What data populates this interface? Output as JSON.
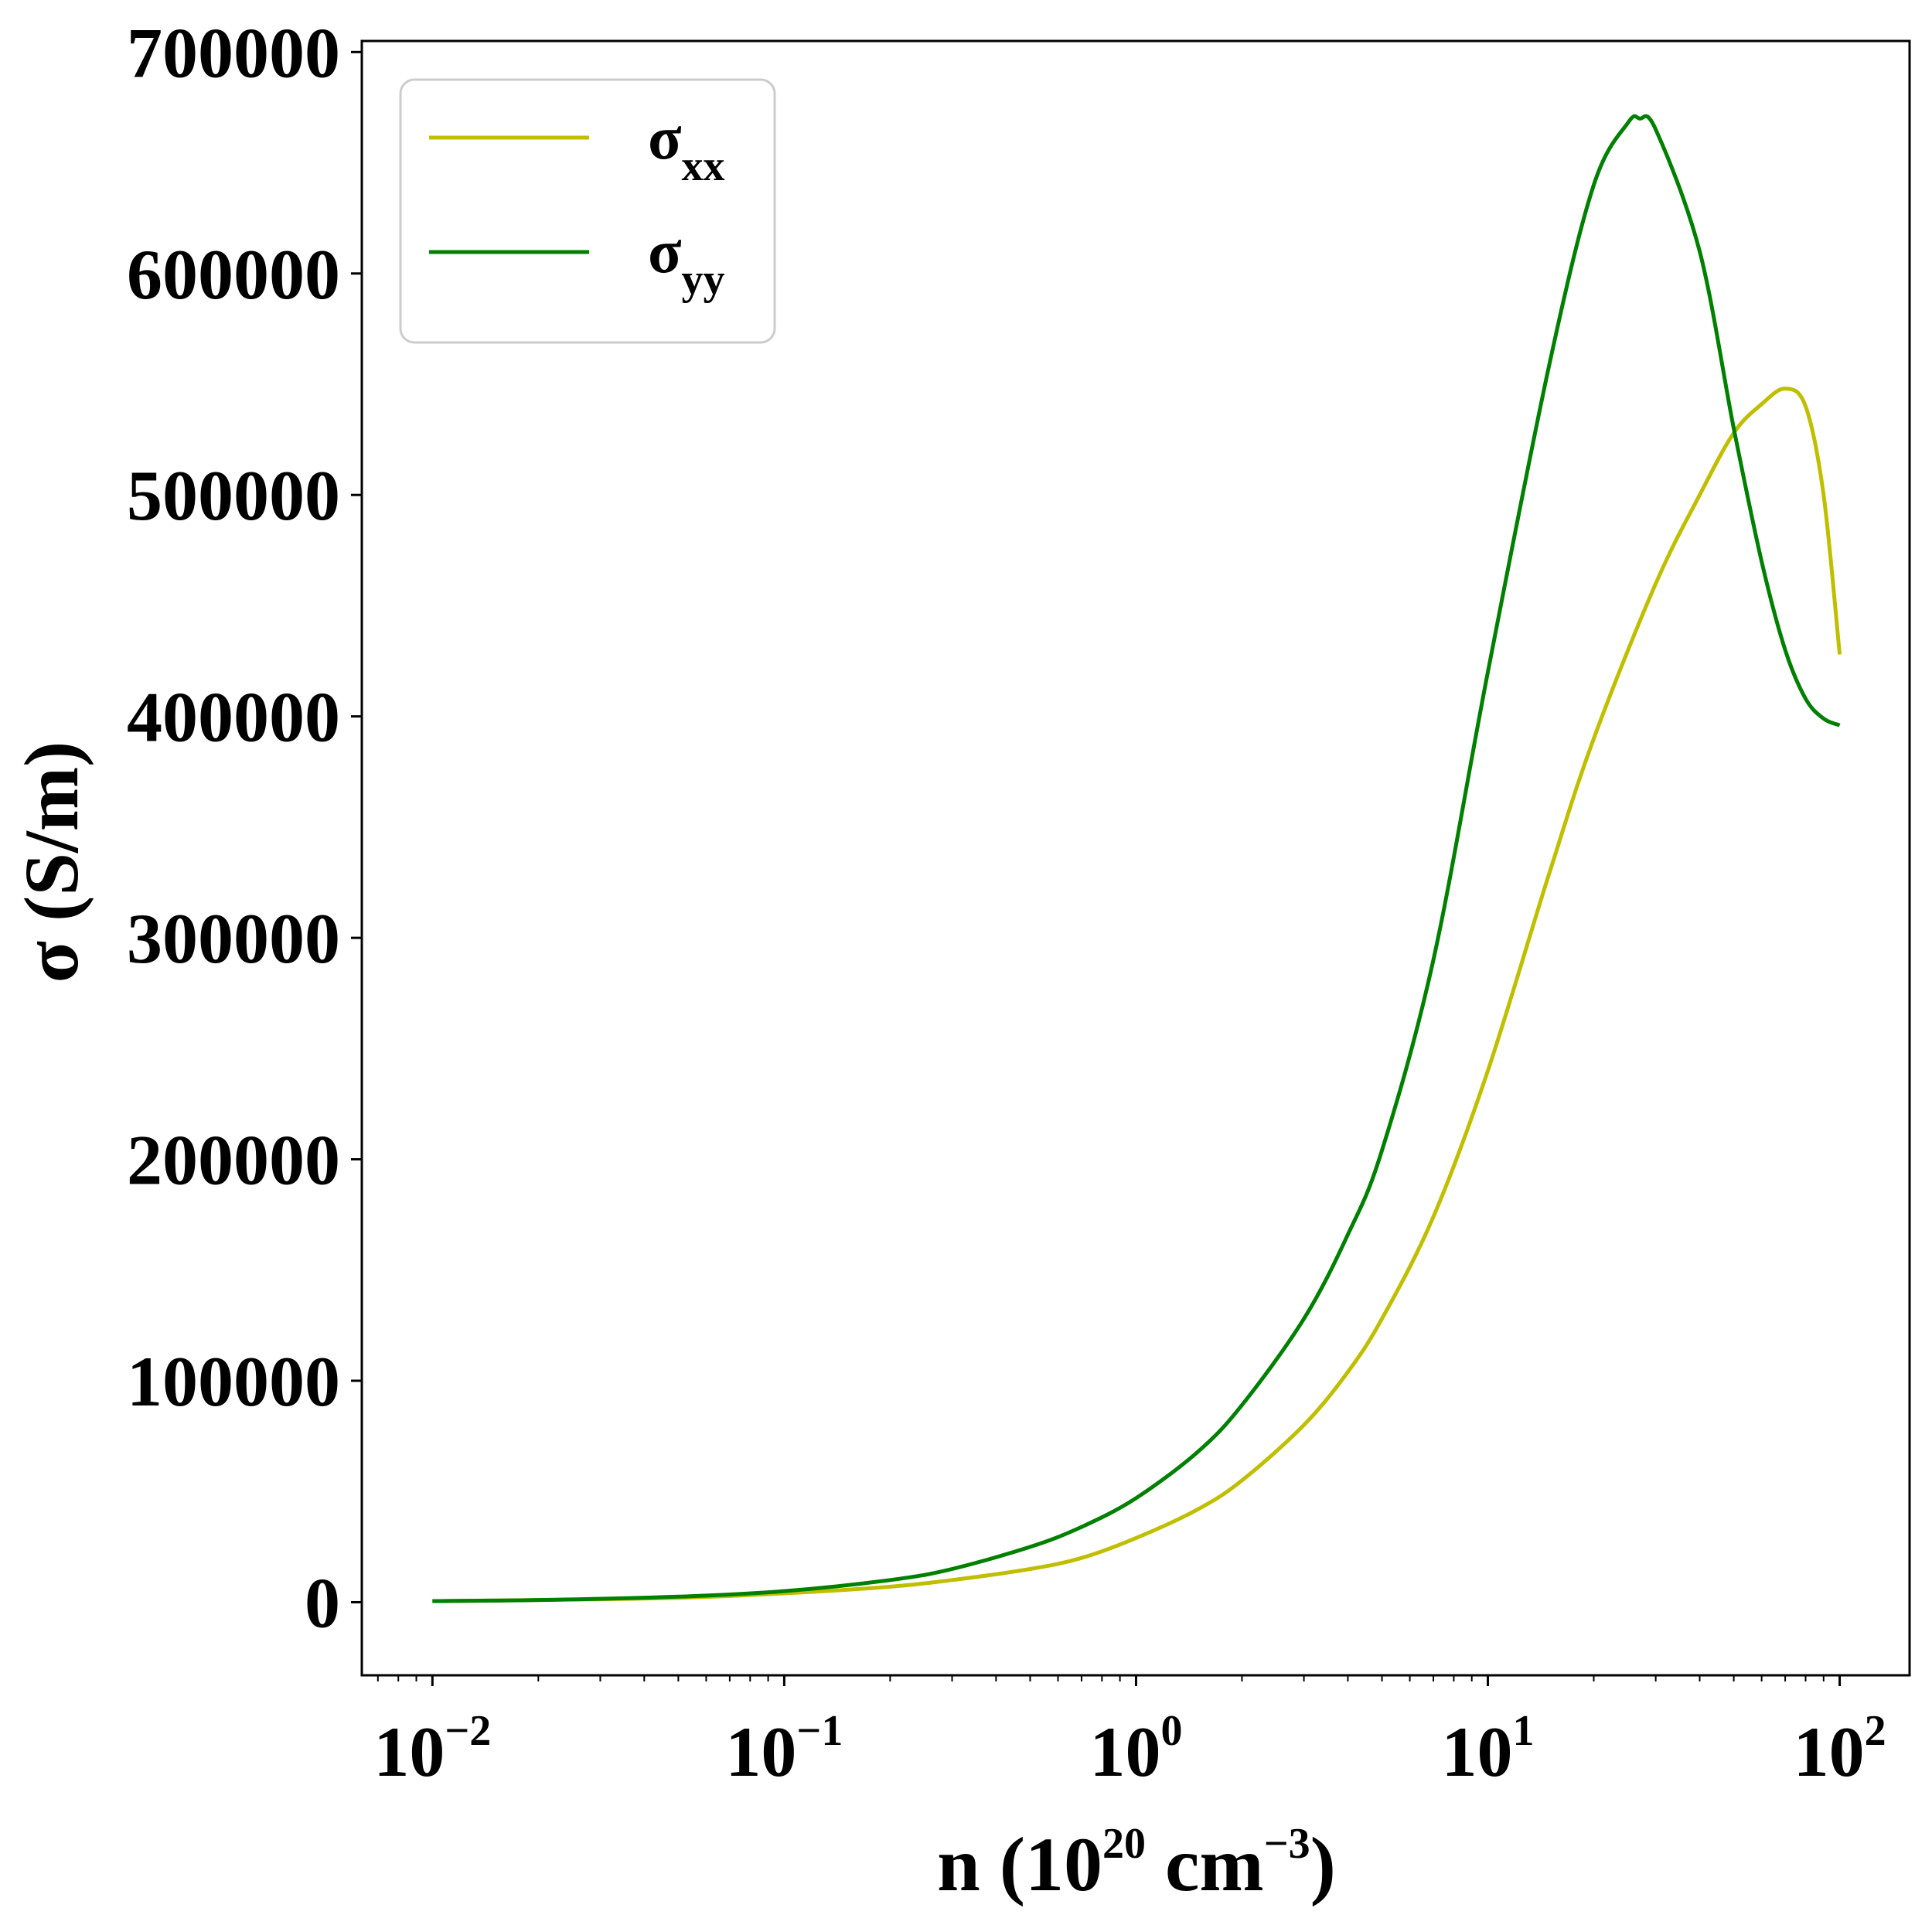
{
  "chart_data": {
    "type": "line",
    "x_scale": "log",
    "xlabel_parts": {
      "pre": "n (10",
      "exp1": "20",
      "mid": " cm",
      "exp2": "−3",
      "post": ")"
    },
    "ylabel": "σ (S/m)",
    "xlim": [
      0.0063,
      158
    ],
    "ylim": [
      -33000,
      705000
    ],
    "grid": false,
    "legend_position": "top-left",
    "x_ticks": [
      {
        "value": 0.01,
        "base": "10",
        "exp": "−2"
      },
      {
        "value": 0.1,
        "base": "10",
        "exp": "−1"
      },
      {
        "value": 1,
        "base": "10",
        "exp": "0"
      },
      {
        "value": 10,
        "base": "10",
        "exp": "1"
      },
      {
        "value": 100,
        "base": "10",
        "exp": "2"
      }
    ],
    "y_ticks": [
      {
        "value": 0,
        "label": "0"
      },
      {
        "value": 100000,
        "label": "100000"
      },
      {
        "value": 200000,
        "label": "200000"
      },
      {
        "value": 300000,
        "label": "300000"
      },
      {
        "value": 400000,
        "label": "400000"
      },
      {
        "value": 500000,
        "label": "500000"
      },
      {
        "value": 600000,
        "label": "600000"
      },
      {
        "value": 700000,
        "label": "700000"
      }
    ],
    "series": [
      {
        "name": "σ",
        "subscript": "xx",
        "color": "#bfbf00",
        "x": [
          0.01,
          0.02,
          0.05,
          0.1,
          0.2,
          0.3,
          0.5,
          0.7,
          1.0,
          1.5,
          2.0,
          3.0,
          4.0,
          5.0,
          7.0,
          10.0,
          15.0,
          20.0,
          30.0,
          40.0,
          50.0,
          60.0,
          70.0,
          80.0,
          90.0,
          100.0
        ],
        "y": [
          500,
          1000,
          2000,
          4000,
          7000,
          10000,
          15000,
          20000,
          29000,
          42000,
          55000,
          80000,
          104000,
          128000,
          174000,
          240000,
          330000,
          390000,
          460000,
          500000,
          528000,
          541000,
          548000,
          540000,
          500000,
          428000
        ]
      },
      {
        "name": "σ",
        "subscript": "yy",
        "color": "#008000",
        "x": [
          0.01,
          0.02,
          0.05,
          0.1,
          0.2,
          0.3,
          0.5,
          0.7,
          1.0,
          1.5,
          2.0,
          3.0,
          4.0,
          5.0,
          7.0,
          10.0,
          15.0,
          20.0,
          25.0,
          27.0,
          30.0,
          40.0,
          50.0,
          60.0,
          70.0,
          80.0,
          90.0,
          100.0
        ],
        "y": [
          500,
          1000,
          2500,
          5000,
          10000,
          15000,
          25000,
          34000,
          47000,
          68000,
          89000,
          128000,
          166000,
          204000,
          290000,
          420000,
          560000,
          640000,
          668000,
          670000,
          665000,
          610000,
          530000,
          470000,
          430000,
          408000,
          399000,
          396000
        ]
      }
    ]
  }
}
